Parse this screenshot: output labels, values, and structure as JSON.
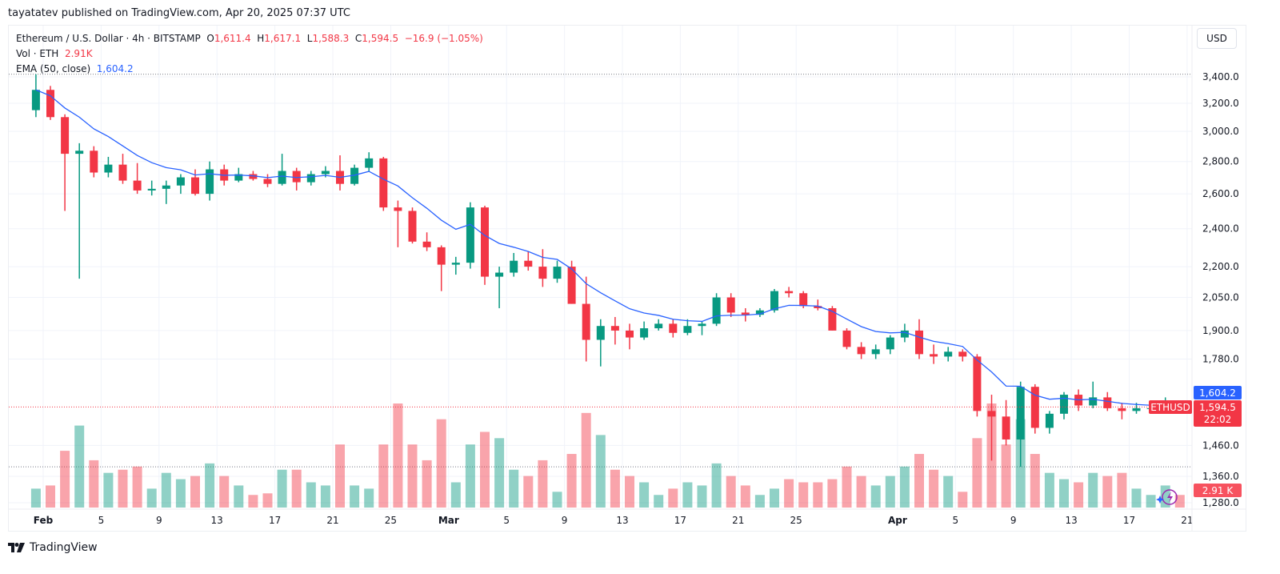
{
  "publisher_line": "tayatatev published on TradingView.com, Apr 20, 2025 07:37 UTC",
  "legend": {
    "symbol": "Ethereum / U.S. Dollar · 4h · BITSTAMP",
    "o_label": "O",
    "o": "1,611.4",
    "h_label": "H",
    "h": "1,617.1",
    "l_label": "L",
    "l": "1,588.3",
    "c_label": "C",
    "c": "1,594.5",
    "change": "−16.9 (−1.05%)",
    "vol_label": "Vol · ETH",
    "vol": "2.91K",
    "ema_label": "EMA (50, close)",
    "ema": "1,604.2"
  },
  "currency_button": "USD",
  "price_labels": {
    "ema": "1,604.2",
    "symbol": "ETHUSD",
    "last": "1,594.5",
    "countdown": "22:02",
    "volume": "2.91 K"
  },
  "brand": "TradingView",
  "colors": {
    "up": "#089981",
    "down": "#f23645",
    "ema": "#2962ff"
  },
  "chart_data": {
    "type": "candlestick",
    "scale": "log",
    "ylim": [
      1280,
      3450
    ],
    "y_ticks": [
      "3,400.0",
      "3,200.0",
      "3,000.0",
      "2,800.0",
      "2,600.0",
      "2,400.0",
      "2,200.0",
      "2,050.0",
      "1,900.0",
      "1,780.0",
      "1,460.0",
      "1,360.0",
      "1,280.0"
    ],
    "x_ticks": [
      "Feb",
      "5",
      "9",
      "13",
      "17",
      "21",
      "25",
      "Mar",
      "5",
      "9",
      "13",
      "17",
      "21",
      "25",
      "Apr",
      "5",
      "9",
      "13",
      "17",
      "21"
    ],
    "x_tick_dates": [
      "2025-02-01",
      "2025-02-05",
      "2025-02-09",
      "2025-02-13",
      "2025-02-17",
      "2025-02-21",
      "2025-02-25",
      "2025-03-01",
      "2025-03-05",
      "2025-03-09",
      "2025-03-13",
      "2025-03-17",
      "2025-03-21",
      "2025-03-25",
      "2025-04-01",
      "2025-04-05",
      "2025-04-09",
      "2025-04-13",
      "2025-04-17",
      "2025-04-21"
    ],
    "ema_period_label": "EMA (50, close)",
    "candles": [
      [
        "2025-01-31",
        3150,
        3420,
        3100,
        3300,
        60
      ],
      [
        "2025-02-01",
        3300,
        3330,
        3080,
        3100,
        70
      ],
      [
        "2025-02-02",
        3100,
        3120,
        2500,
        2850,
        180
      ],
      [
        "2025-02-03",
        2850,
        2920,
        2140,
        2870,
        260
      ],
      [
        "2025-02-04",
        2870,
        2900,
        2700,
        2730,
        150
      ],
      [
        "2025-02-05",
        2730,
        2830,
        2700,
        2780,
        110
      ],
      [
        "2025-02-06",
        2780,
        2850,
        2660,
        2680,
        120
      ],
      [
        "2025-02-07",
        2680,
        2790,
        2600,
        2620,
        130
      ],
      [
        "2025-02-08",
        2620,
        2680,
        2590,
        2630,
        60
      ],
      [
        "2025-02-09",
        2630,
        2680,
        2540,
        2650,
        110
      ],
      [
        "2025-02-10",
        2650,
        2720,
        2600,
        2700,
        90
      ],
      [
        "2025-02-11",
        2700,
        2750,
        2590,
        2600,
        100
      ],
      [
        "2025-02-12",
        2600,
        2800,
        2560,
        2750,
        140
      ],
      [
        "2025-02-13",
        2750,
        2780,
        2650,
        2680,
        100
      ],
      [
        "2025-02-14",
        2680,
        2760,
        2670,
        2720,
        70
      ],
      [
        "2025-02-15",
        2720,
        2740,
        2680,
        2690,
        40
      ],
      [
        "2025-02-16",
        2690,
        2720,
        2640,
        2660,
        45
      ],
      [
        "2025-02-17",
        2660,
        2850,
        2650,
        2740,
        120
      ],
      [
        "2025-02-18",
        2740,
        2760,
        2620,
        2670,
        120
      ],
      [
        "2025-02-19",
        2670,
        2740,
        2650,
        2720,
        80
      ],
      [
        "2025-02-20",
        2720,
        2770,
        2700,
        2740,
        70
      ],
      [
        "2025-02-21",
        2740,
        2840,
        2620,
        2660,
        200
      ],
      [
        "2025-02-22",
        2660,
        2780,
        2650,
        2760,
        70
      ],
      [
        "2025-02-23",
        2760,
        2860,
        2740,
        2820,
        60
      ],
      [
        "2025-02-24",
        2820,
        2830,
        2500,
        2520,
        200
      ],
      [
        "2025-02-25",
        2520,
        2560,
        2300,
        2500,
        330
      ],
      [
        "2025-02-26",
        2500,
        2520,
        2320,
        2330,
        200
      ],
      [
        "2025-02-27",
        2330,
        2380,
        2280,
        2300,
        150
      ],
      [
        "2025-02-28",
        2300,
        2310,
        2080,
        2210,
        280
      ],
      [
        "2025-03-01",
        2210,
        2250,
        2160,
        2220,
        80
      ],
      [
        "2025-03-02",
        2220,
        2550,
        2190,
        2520,
        200
      ],
      [
        "2025-03-03",
        2520,
        2530,
        2110,
        2150,
        240
      ],
      [
        "2025-03-04",
        2150,
        2200,
        2000,
        2170,
        220
      ],
      [
        "2025-03-05",
        2170,
        2270,
        2150,
        2230,
        120
      ],
      [
        "2025-03-06",
        2230,
        2280,
        2180,
        2200,
        100
      ],
      [
        "2025-03-07",
        2200,
        2290,
        2100,
        2140,
        150
      ],
      [
        "2025-03-08",
        2140,
        2230,
        2120,
        2200,
        50
      ],
      [
        "2025-03-09",
        2200,
        2230,
        2020,
        2020,
        170
      ],
      [
        "2025-03-10",
        2020,
        2150,
        1770,
        1860,
        300
      ],
      [
        "2025-03-11",
        1860,
        1950,
        1750,
        1920,
        230
      ],
      [
        "2025-03-12",
        1920,
        1960,
        1840,
        1900,
        120
      ],
      [
        "2025-03-13",
        1900,
        1930,
        1820,
        1870,
        100
      ],
      [
        "2025-03-14",
        1870,
        1940,
        1860,
        1910,
        80
      ],
      [
        "2025-03-15",
        1910,
        1950,
        1900,
        1930,
        40
      ],
      [
        "2025-03-16",
        1930,
        1950,
        1870,
        1890,
        60
      ],
      [
        "2025-03-17",
        1890,
        1950,
        1880,
        1920,
        80
      ],
      [
        "2025-03-18",
        1920,
        1940,
        1880,
        1930,
        70
      ],
      [
        "2025-03-19",
        1930,
        2070,
        1920,
        2050,
        140
      ],
      [
        "2025-03-20",
        2050,
        2070,
        1960,
        1980,
        100
      ],
      [
        "2025-03-21",
        1980,
        2000,
        1940,
        1970,
        70
      ],
      [
        "2025-03-22",
        1970,
        2000,
        1960,
        1990,
        40
      ],
      [
        "2025-03-23",
        1990,
        2090,
        1980,
        2080,
        60
      ],
      [
        "2025-03-24",
        2080,
        2100,
        2050,
        2070,
        90
      ],
      [
        "2025-03-25",
        2070,
        2080,
        2000,
        2010,
        80
      ],
      [
        "2025-03-26",
        2010,
        2040,
        1990,
        2000,
        80
      ],
      [
        "2025-03-27",
        2000,
        2010,
        1900,
        1900,
        90
      ],
      [
        "2025-03-28",
        1900,
        1910,
        1820,
        1830,
        130
      ],
      [
        "2025-03-29",
        1830,
        1850,
        1780,
        1800,
        100
      ],
      [
        "2025-03-30",
        1800,
        1840,
        1780,
        1820,
        70
      ],
      [
        "2025-03-31",
        1820,
        1880,
        1800,
        1870,
        100
      ],
      [
        "2025-04-01",
        1870,
        1930,
        1850,
        1900,
        130
      ],
      [
        "2025-04-02",
        1900,
        1950,
        1780,
        1800,
        170
      ],
      [
        "2025-04-03",
        1800,
        1840,
        1760,
        1790,
        120
      ],
      [
        "2025-04-04",
        1790,
        1830,
        1770,
        1810,
        100
      ],
      [
        "2025-04-05",
        1810,
        1820,
        1770,
        1790,
        50
      ],
      [
        "2025-04-06",
        1790,
        1800,
        1560,
        1580,
        220
      ],
      [
        "2025-04-07",
        1580,
        1640,
        1410,
        1560,
        330
      ],
      [
        "2025-04-08",
        1560,
        1620,
        1460,
        1480,
        200
      ],
      [
        "2025-04-09",
        1480,
        1690,
        1390,
        1670,
        280
      ],
      [
        "2025-04-10",
        1670,
        1680,
        1500,
        1520,
        170
      ],
      [
        "2025-04-11",
        1520,
        1580,
        1500,
        1570,
        110
      ],
      [
        "2025-04-12",
        1570,
        1650,
        1550,
        1640,
        90
      ],
      [
        "2025-04-13",
        1640,
        1660,
        1580,
        1600,
        80
      ],
      [
        "2025-04-14",
        1600,
        1690,
        1590,
        1630,
        110
      ],
      [
        "2025-04-15",
        1630,
        1650,
        1580,
        1590,
        100
      ],
      [
        "2025-04-16",
        1590,
        1610,
        1550,
        1580,
        110
      ],
      [
        "2025-04-17",
        1580,
        1610,
        1570,
        1590,
        60
      ],
      [
        "2025-04-18",
        1590,
        1600,
        1575,
        1590,
        40
      ],
      [
        "2025-04-19",
        1590,
        1630,
        1580,
        1611,
        70
      ],
      [
        "2025-04-20",
        1611,
        1617,
        1588,
        1594.5,
        40
      ]
    ],
    "last_price": 1594.5,
    "ema_last": 1604.2
  }
}
